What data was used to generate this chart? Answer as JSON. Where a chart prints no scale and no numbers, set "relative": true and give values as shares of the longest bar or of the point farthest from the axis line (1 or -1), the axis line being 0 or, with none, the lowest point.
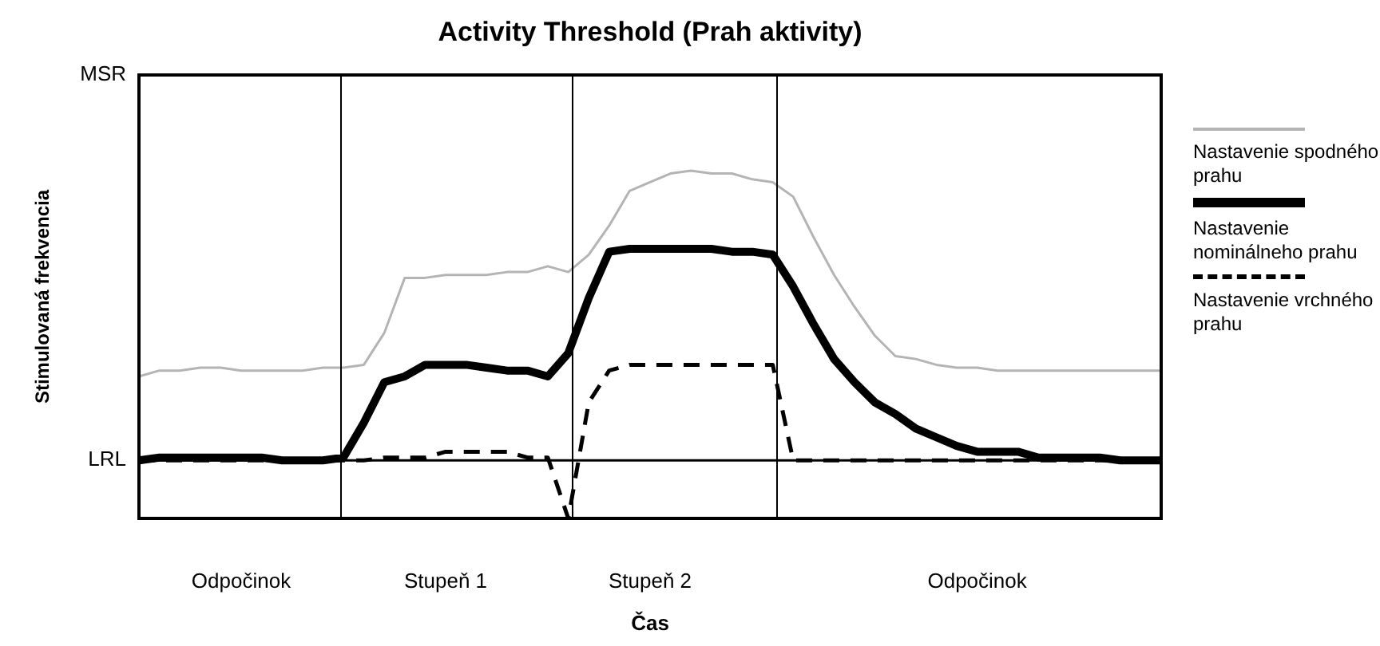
{
  "chart_data": {
    "type": "line",
    "title": "Activity Threshold (Prah aktivity)",
    "xlabel": "Čas",
    "ylabel": "Stimulovaná frekvencia",
    "categories": [
      null,
      null,
      null,
      null,
      null,
      "Odpočinok",
      null,
      null,
      null,
      null,
      null,
      null,
      null,
      null,
      null,
      "Stupeň 1",
      null,
      null,
      null,
      null,
      null,
      null,
      null,
      null,
      null,
      "Stupeň 2",
      null,
      null,
      null,
      null,
      null,
      null,
      null,
      null,
      null,
      null,
      null,
      null,
      null,
      null,
      null,
      "Odpočinok",
      null,
      null,
      null,
      null,
      null,
      null,
      null,
      null,
      null
    ],
    "relative": true,
    "legend": "right",
    "marker": "none",
    "annotations": [
      "MSR",
      "LRL"
    ],
    "series": [
      {
        "name": "Nastavenie spodného prahu",
        "color": "#b4b4b4",
        "line_style": "solid",
        "values": [
          0.29,
          0.31,
          0.31,
          0.32,
          0.32,
          0.31,
          0.31,
          0.31,
          0.31,
          0.32,
          0.32,
          0.33,
          0.44,
          0.63,
          0.63,
          0.64,
          0.64,
          0.64,
          0.65,
          0.65,
          0.67,
          0.65,
          0.71,
          0.81,
          0.93,
          0.96,
          0.99,
          1,
          0.99,
          0.99,
          0.97,
          0.96,
          0.91,
          0.77,
          0.64,
          0.53,
          0.43,
          0.36,
          0.35,
          0.33,
          0.32,
          0.32,
          0.31,
          0.31,
          0.31,
          0.31,
          0.31,
          0.31,
          0.31,
          0.31,
          0.31
        ]
      },
      {
        "name": "Nastavenie nominálneho prahu",
        "color": "#000000",
        "line_style": "solid",
        "values": [
          0,
          0.01,
          0.01,
          0.01,
          0.01,
          0.01,
          0.01,
          0,
          0,
          0,
          0.01,
          0.13,
          0.27,
          0.29,
          0.33,
          0.33,
          0.33,
          0.32,
          0.31,
          0.31,
          0.29,
          0.37,
          0.56,
          0.72,
          0.73,
          0.73,
          0.73,
          0.73,
          0.73,
          0.72,
          0.72,
          0.71,
          0.6,
          0.47,
          0.35,
          0.27,
          0.2,
          0.16,
          0.11,
          0.08,
          0.05,
          0.03,
          0.03,
          0.03,
          0.01,
          0.01,
          0.01,
          0.01,
          0,
          0,
          0
        ]
      },
      {
        "name": "Nastavenie vrchného prahu",
        "color": "#000000",
        "line_style": "dashed",
        "values": [
          0,
          0,
          0,
          0,
          0,
          0,
          0,
          0,
          0,
          0,
          0,
          0,
          0.01,
          0.01,
          0.01,
          0.03,
          0.03,
          0.03,
          0.03,
          0.01,
          0.01,
          -0.2,
          0.2,
          0.31,
          0.33,
          0.33,
          0.33,
          0.33,
          0.33,
          0.33,
          0.33,
          0.33,
          0,
          0,
          0,
          0,
          0,
          0,
          0,
          0,
          0,
          0,
          0,
          0,
          0,
          0,
          0,
          0,
          0,
          0,
          0
        ]
      }
    ]
  }
}
